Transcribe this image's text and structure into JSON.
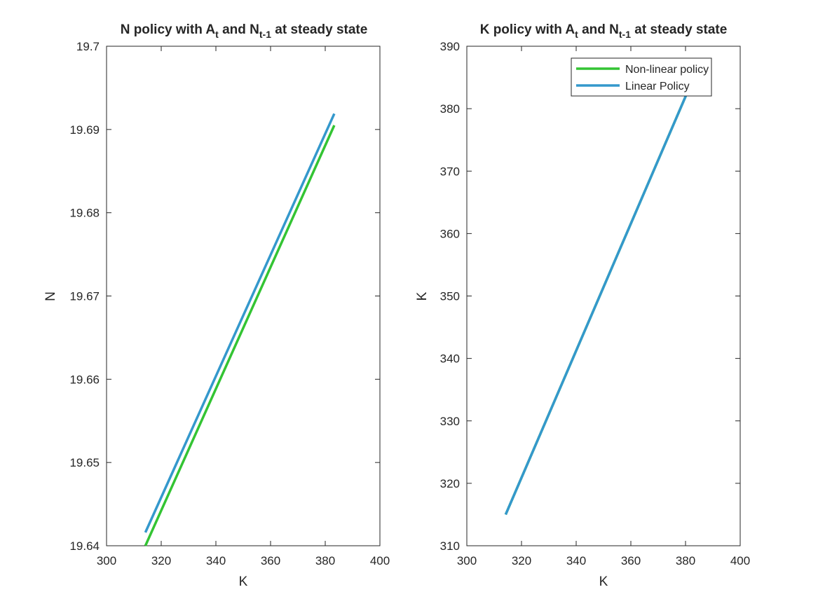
{
  "chart_data": [
    {
      "type": "line",
      "title": {
        "a": "N policy with A",
        "sub_a": "t",
        "b": " and N",
        "sub_b": "t-1",
        "c": " at steady state"
      },
      "xlabel": "K",
      "ylabel": "N",
      "xlim": [
        300,
        400
      ],
      "ylim": [
        19.64,
        19.7
      ],
      "xticks": [
        300,
        320,
        340,
        360,
        380,
        400
      ],
      "yticks": [
        19.64,
        19.65,
        19.66,
        19.67,
        19.68,
        19.69,
        19.7
      ],
      "xtick_labels": [
        "300",
        "320",
        "340",
        "360",
        "380",
        "400"
      ],
      "ytick_labels": [
        "19.64",
        "19.65",
        "19.66",
        "19.67",
        "19.68",
        "19.69",
        "19.7"
      ],
      "grid": false,
      "series": [
        {
          "key": "nonlinear",
          "color": "#33c433",
          "x": [
            314.2,
            383.3
          ],
          "y": [
            19.64,
            19.6905
          ]
        },
        {
          "key": "linear",
          "color": "#3498cc",
          "x": [
            314.2,
            383.3
          ],
          "y": [
            19.6416,
            19.6919
          ]
        }
      ]
    },
    {
      "type": "line",
      "title": {
        "a": "K policy with A",
        "sub_a": "t",
        "b": " and N",
        "sub_b": "t-1",
        "c": " at steady state"
      },
      "xlabel": "K",
      "ylabel": "K",
      "xlim": [
        300,
        400
      ],
      "ylim": [
        310,
        390
      ],
      "xticks": [
        300,
        320,
        340,
        360,
        380,
        400
      ],
      "yticks": [
        310,
        320,
        330,
        340,
        350,
        360,
        370,
        380,
        390
      ],
      "xtick_labels": [
        "300",
        "320",
        "340",
        "360",
        "380",
        "400"
      ],
      "ytick_labels": [
        "310",
        "320",
        "330",
        "340",
        "350",
        "360",
        "370",
        "380",
        "390"
      ],
      "grid": false,
      "legend": {
        "location": "top-right",
        "entries": [
          "Non-linear policy",
          "Linear Policy"
        ]
      },
      "series": [
        {
          "name": "Non-linear policy",
          "color": "#33c433",
          "x": [
            314.2,
            384.0
          ],
          "y": [
            315.0,
            386.0
          ]
        },
        {
          "name": "Linear Policy",
          "color": "#3498cc",
          "x": [
            314.2,
            384.0
          ],
          "y": [
            315.0,
            386.0
          ]
        }
      ]
    }
  ]
}
